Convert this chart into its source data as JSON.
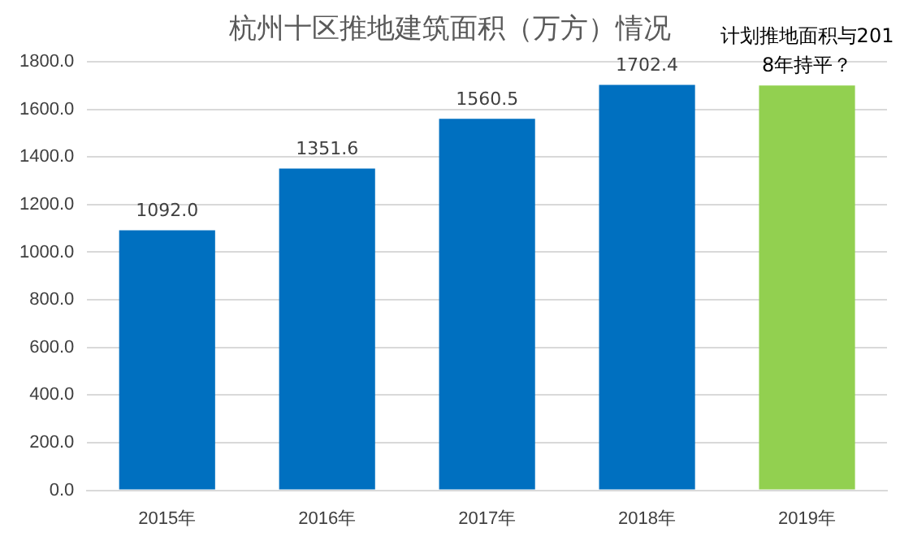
{
  "chart_data": {
    "type": "bar",
    "title": "杭州十区推地建筑面积（万方）情况",
    "categories": [
      "2015年",
      "2016年",
      "2017年",
      "2018年",
      "2019年"
    ],
    "values": [
      1092.0,
      1351.6,
      1560.5,
      1702.4,
      1700
    ],
    "colors": [
      "#0070c0",
      "#0070c0",
      "#0070c0",
      "#0070c0",
      "#92d050"
    ],
    "value_labels": [
      "1092.0",
      "1351.6",
      "1560.5",
      "1702.4",
      null
    ],
    "ylim": [
      0,
      1800
    ],
    "yticks": [
      {
        "value": 0,
        "label": "0.0"
      },
      {
        "value": 200,
        "label": "200.0"
      },
      {
        "value": 400,
        "label": "400.0"
      },
      {
        "value": 600,
        "label": "600.0"
      },
      {
        "value": 800,
        "label": "800.0"
      },
      {
        "value": 1000,
        "label": "1000.0"
      },
      {
        "value": 1200,
        "label": "1200.0"
      },
      {
        "value": 1400,
        "label": "1400.0"
      },
      {
        "value": 1600,
        "label": "1600.0"
      },
      {
        "value": 1800,
        "label": "1800.0"
      }
    ],
    "grid": "y",
    "annotations": [
      {
        "text": "计划推地面积与2018年持平？",
        "x": "2019年",
        "y": 1700
      }
    ]
  }
}
